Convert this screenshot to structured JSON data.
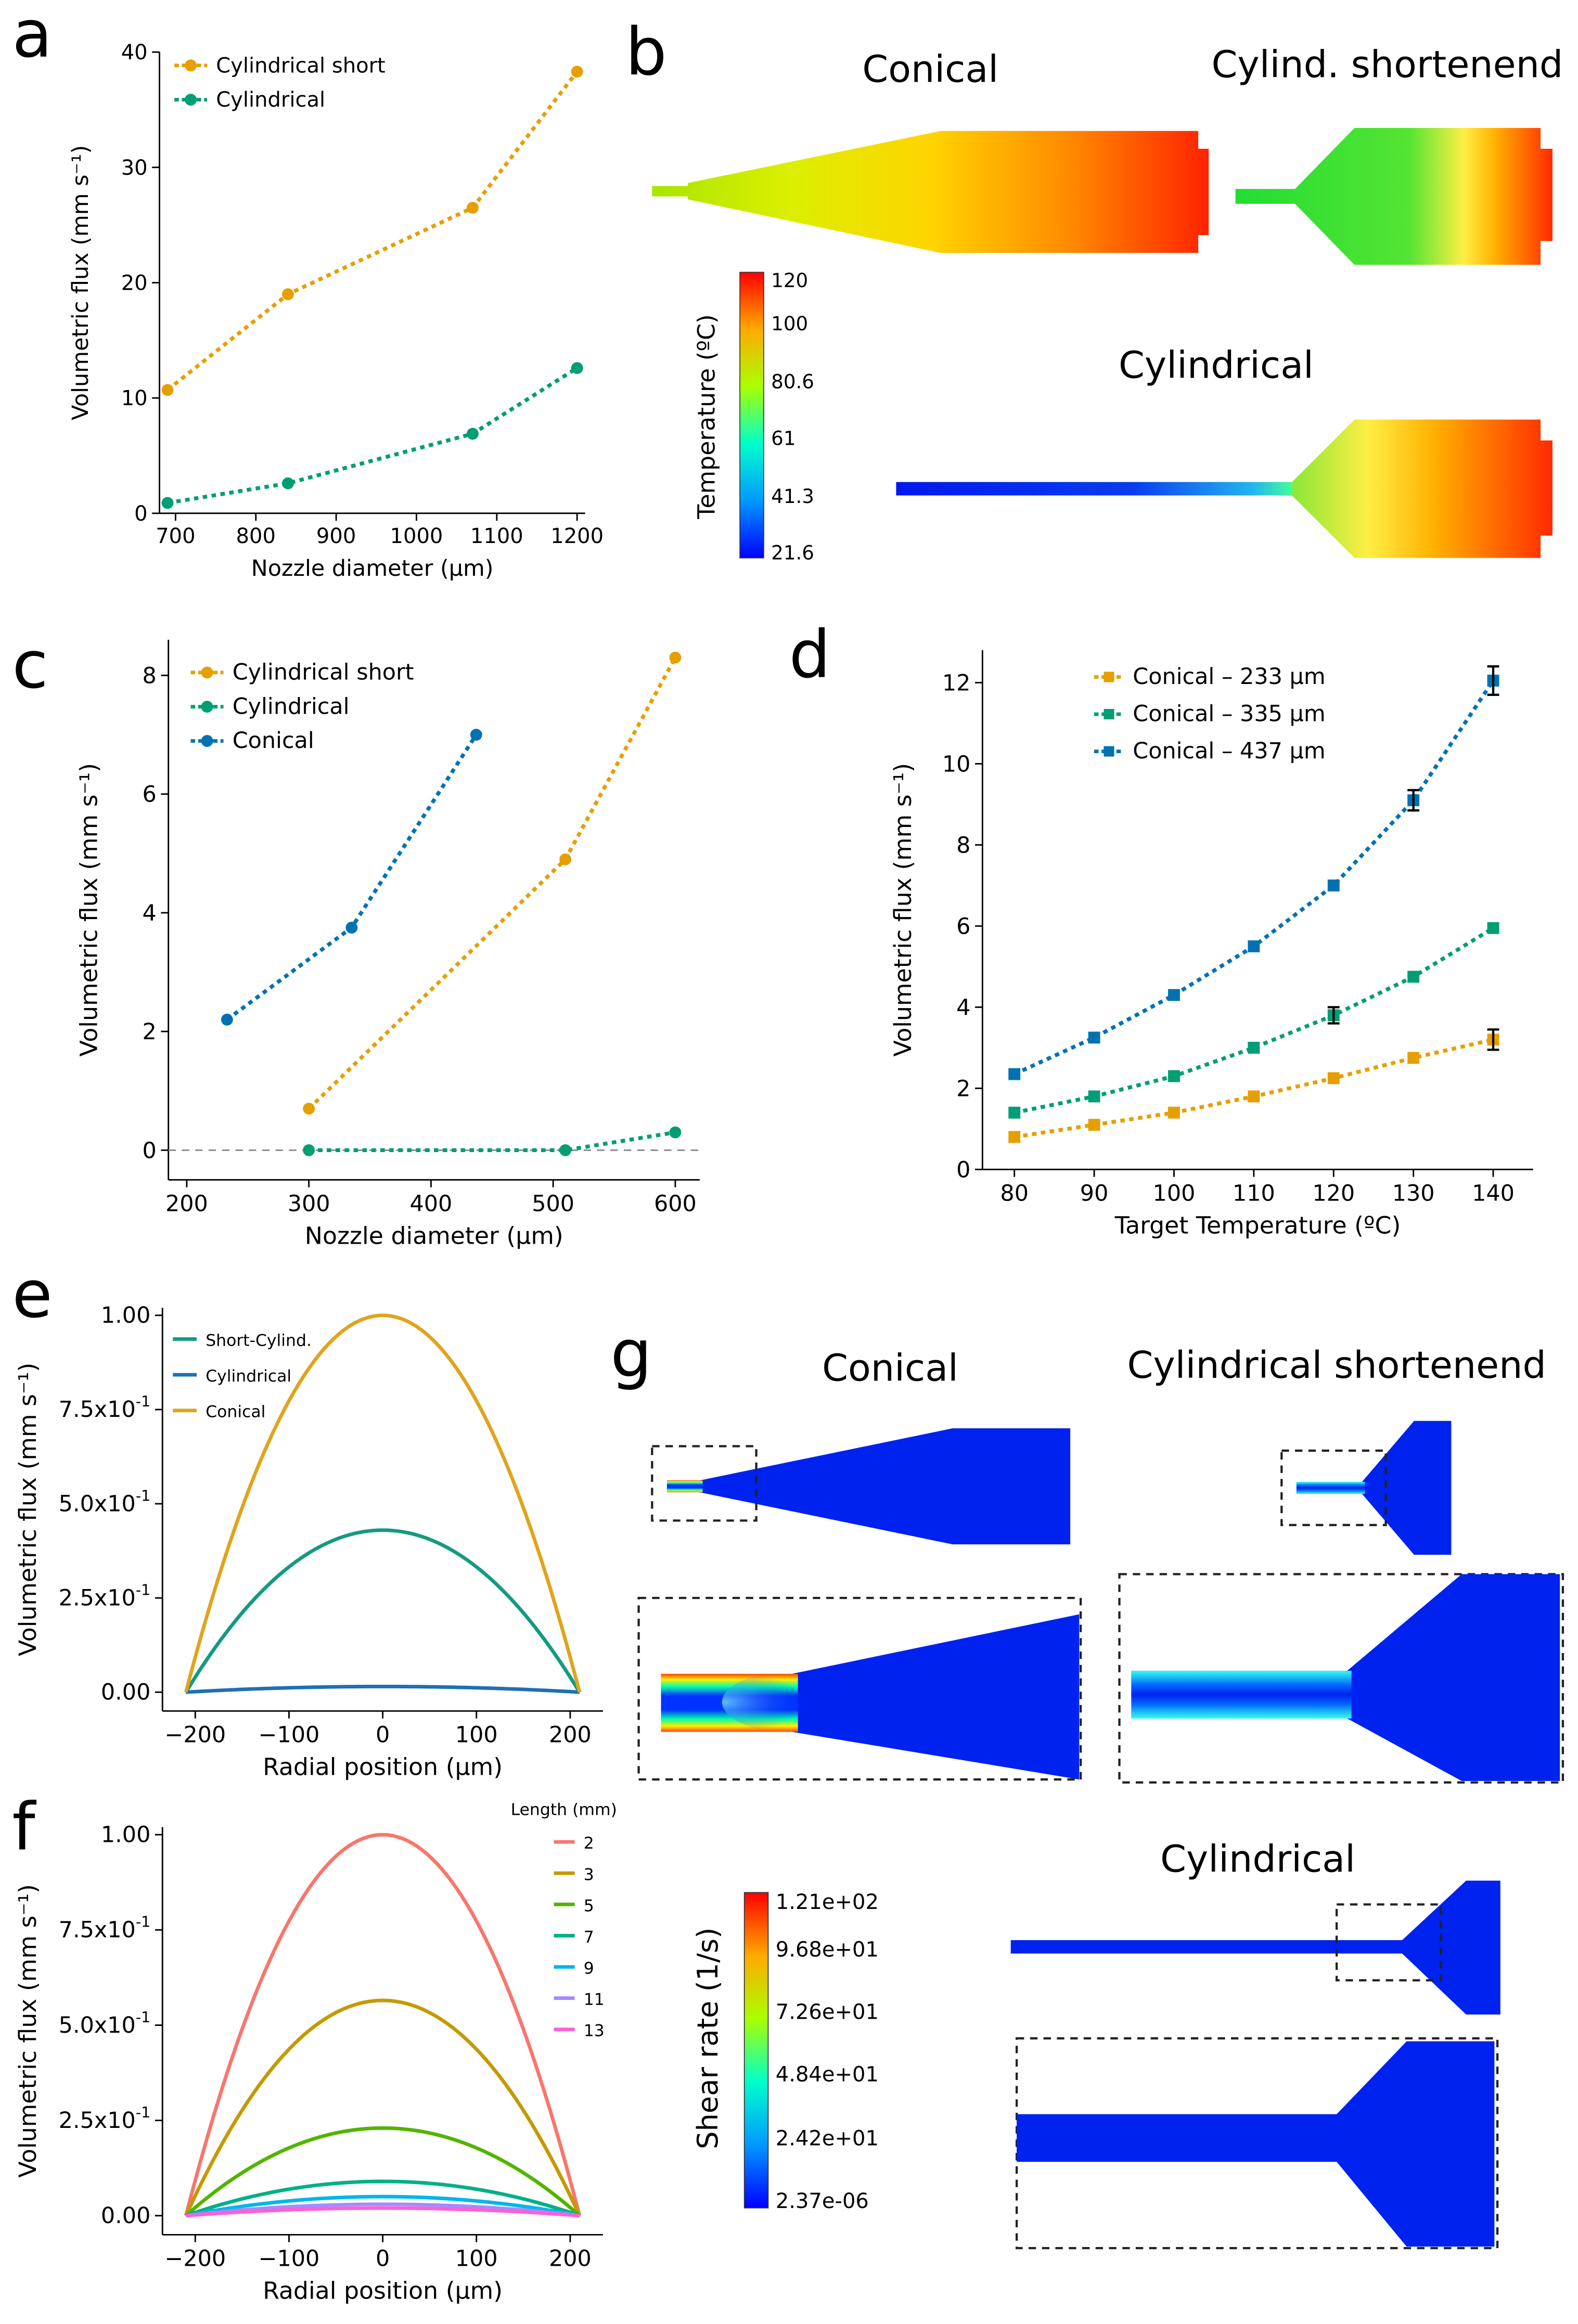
{
  "figure": {
    "panels": {
      "a": {
        "letter": "a",
        "chart_type": "line",
        "xlabel": "Nozzle diameter (μm)",
        "ylabel": "Volumetric flux  (mm s⁻¹)",
        "xlim": [
          680,
          1210
        ],
        "ylim": [
          0,
          40
        ],
        "xticks": [
          700,
          800,
          900,
          1000,
          1100,
          1200
        ],
        "yticks": [
          0,
          10,
          20,
          30,
          40
        ],
        "series": [
          {
            "name": "Cylindrical short",
            "color": "#E69F00",
            "x": [
              690,
              840,
              1070,
              1200
            ],
            "y": [
              10.7,
              19.0,
              26.5,
              38.3
            ]
          },
          {
            "name": "Cylindrical",
            "color": "#009E73",
            "x": [
              690,
              840,
              1070,
              1200
            ],
            "y": [
              0.9,
              2.6,
              6.9,
              12.6
            ]
          }
        ]
      },
      "b": {
        "letter": "b",
        "titles": {
          "conical": "Conical",
          "cyl_short": "Cylind. shortenend",
          "cyl": "Cylindrical"
        },
        "colorbar": {
          "label": "Temperature (ºC)",
          "ticks": [
            "120",
            "100",
            "80.6",
            "61",
            "41.3",
            "21.6"
          ]
        }
      },
      "c": {
        "letter": "c",
        "chart_type": "line",
        "xlabel": "Nozzle diameter (μm)",
        "ylabel": "Volumetric flux  (mm s⁻¹)",
        "xlim": [
          185,
          620
        ],
        "ylim": [
          -0.5,
          8.6
        ],
        "xticks": [
          200,
          300,
          400,
          500,
          600
        ],
        "yticks": [
          0,
          2,
          4,
          6,
          8
        ],
        "series": [
          {
            "name": "Cylindrical short",
            "color": "#E69F00",
            "x": [
              300,
              510,
              600
            ],
            "y": [
              0.7,
              4.9,
              8.3
            ]
          },
          {
            "name": "Cylindrical",
            "color": "#009E73",
            "x": [
              300,
              510,
              600
            ],
            "y": [
              0.0,
              0.0,
              0.3
            ]
          },
          {
            "name": "Conical",
            "color": "#0072B2",
            "x": [
              233,
              335,
              437
            ],
            "y": [
              2.2,
              3.75,
              7.0
            ]
          }
        ]
      },
      "d": {
        "letter": "d",
        "chart_type": "line",
        "xlabel": "Target Temperature (ºC)",
        "ylabel": "Volumetric flux  (mm s⁻¹)",
        "xlim": [
          76,
          145
        ],
        "ylim": [
          0,
          12.8
        ],
        "xticks": [
          80,
          90,
          100,
          110,
          120,
          130,
          140
        ],
        "yticks": [
          0,
          2,
          4,
          6,
          8,
          10,
          12
        ],
        "series": [
          {
            "name": "Conical – 233 μm",
            "color": "#E69F00",
            "x": [
              80,
              90,
              100,
              110,
              120,
              130,
              140
            ],
            "y": [
              0.8,
              1.1,
              1.4,
              1.8,
              2.25,
              2.75,
              3.2
            ]
          },
          {
            "name": "Conical – 335 μm",
            "color": "#009E73",
            "x": [
              80,
              90,
              100,
              110,
              120,
              130,
              140
            ],
            "y": [
              1.4,
              1.8,
              2.3,
              3.0,
              3.8,
              4.75,
              5.95
            ]
          },
          {
            "name": "Conical – 437 μm",
            "color": "#0072B2",
            "x": [
              80,
              90,
              100,
              110,
              120,
              130,
              140
            ],
            "y": [
              2.35,
              3.25,
              4.3,
              5.5,
              7.0,
              9.1,
              12.05
            ]
          }
        ],
        "error_bars": [
          {
            "series": 0,
            "x": 140,
            "err": 0.25
          },
          {
            "series": 1,
            "x": 120,
            "err": 0.2
          },
          {
            "series": 2,
            "x": 130,
            "err": 0.25
          },
          {
            "series": 2,
            "x": 140,
            "err": 0.35
          }
        ]
      },
      "e": {
        "letter": "e",
        "chart_type": "line",
        "xlabel": "Radial position (μm)",
        "ylabel": "Volumetric flux  (mm s⁻¹)",
        "xlim": [
          -235,
          235
        ],
        "ylim": [
          -0.05,
          1.02
        ],
        "xticks": [
          -200,
          -100,
          0,
          100,
          200
        ],
        "xtick_labels": [
          "−200",
          "−100",
          "0",
          "100",
          "200"
        ],
        "ytick_values": [
          0,
          0.25,
          0.5,
          0.75,
          1.0
        ],
        "ytick_labels": [
          {
            "base": "0.00"
          },
          {
            "base": "2.5x10",
            "exp": "-1"
          },
          {
            "base": "5.0x10",
            "exp": "-1"
          },
          {
            "base": "7.5x10",
            "exp": "-1"
          },
          {
            "base": "1.00"
          }
        ],
        "profile": {
          "x_range": [
            -210,
            210
          ],
          "shape": "parabolic"
        },
        "series": [
          {
            "name": "Short-Cylind.",
            "color": "#149A80",
            "peak": 0.43
          },
          {
            "name": "Cylindrical",
            "color": "#1F6FB4",
            "peak": 0.015
          },
          {
            "name": "Conical",
            "color": "#E0A41C",
            "peak": 1.0
          }
        ]
      },
      "f": {
        "letter": "f",
        "chart_type": "line",
        "xlabel": "Radial position (μm)",
        "ylabel": "Volumetric flux  (mm s⁻¹)",
        "legend_title": "Length (mm)",
        "xlim": [
          -235,
          235
        ],
        "ylim": [
          -0.05,
          1.02
        ],
        "xticks": [
          -200,
          -100,
          0,
          100,
          200
        ],
        "xtick_labels": [
          "−200",
          "−100",
          "0",
          "100",
          "200"
        ],
        "ytick_values": [
          0,
          0.25,
          0.5,
          0.75,
          1.0
        ],
        "ytick_labels": [
          {
            "base": "0.00"
          },
          {
            "base": "2.5x10",
            "exp": "-1"
          },
          {
            "base": "5.0x10",
            "exp": "-1"
          },
          {
            "base": "7.5x10",
            "exp": "-1"
          },
          {
            "base": "1.00"
          }
        ],
        "profile": {
          "x_range": [
            -210,
            210
          ],
          "shape": "parabolic"
        },
        "series": [
          {
            "name": "2",
            "color": "#F8766D",
            "peak": 1.0
          },
          {
            "name": "3",
            "color": "#C49A00",
            "peak": 0.565
          },
          {
            "name": "5",
            "color": "#53B400",
            "peak": 0.23
          },
          {
            "name": "7",
            "color": "#00B087",
            "peak": 0.09
          },
          {
            "name": "9",
            "color": "#00B6EB",
            "peak": 0.05
          },
          {
            "name": "11",
            "color": "#A58AFF",
            "peak": 0.03
          },
          {
            "name": "13",
            "color": "#FB61D7",
            "peak": 0.02
          }
        ]
      },
      "g": {
        "letter": "g",
        "titles": {
          "conical": "Conical",
          "cyl_short": "Cylindrical shortenend",
          "cyl": "Cylindrical"
        },
        "colorbar": {
          "label": "Shear rate (1/s)",
          "ticks": [
            "1.21e+02",
            "9.68e+01",
            "7.26e+01",
            "4.84e+01",
            "2.42e+01",
            "2.37e-06"
          ]
        }
      }
    }
  },
  "chart_data": [
    {
      "panel": "a",
      "type": "line",
      "xlabel": "Nozzle diameter (μm)",
      "ylabel": "Volumetric flux (mm s⁻¹)",
      "series": [
        {
          "name": "Cylindrical short",
          "x": [
            690,
            840,
            1070,
            1200
          ],
          "y": [
            10.7,
            19.0,
            26.5,
            38.3
          ]
        },
        {
          "name": "Cylindrical",
          "x": [
            690,
            840,
            1070,
            1200
          ],
          "y": [
            0.9,
            2.6,
            6.9,
            12.6
          ]
        }
      ]
    },
    {
      "panel": "c",
      "type": "line",
      "xlabel": "Nozzle diameter (μm)",
      "ylabel": "Volumetric flux (mm s⁻¹)",
      "series": [
        {
          "name": "Cylindrical short",
          "x": [
            300,
            510,
            600
          ],
          "y": [
            0.7,
            4.9,
            8.3
          ]
        },
        {
          "name": "Cylindrical",
          "x": [
            300,
            510,
            600
          ],
          "y": [
            0.0,
            0.0,
            0.3
          ]
        },
        {
          "name": "Conical",
          "x": [
            233,
            335,
            437
          ],
          "y": [
            2.2,
            3.75,
            7.0
          ]
        }
      ]
    },
    {
      "panel": "d",
      "type": "line",
      "xlabel": "Target Temperature (ºC)",
      "ylabel": "Volumetric flux (mm s⁻¹)",
      "categories": [
        80,
        90,
        100,
        110,
        120,
        130,
        140
      ],
      "series": [
        {
          "name": "Conical – 233 μm",
          "values": [
            0.8,
            1.1,
            1.4,
            1.8,
            2.25,
            2.75,
            3.2
          ]
        },
        {
          "name": "Conical – 335 μm",
          "values": [
            1.4,
            1.8,
            2.3,
            3.0,
            3.8,
            4.75,
            5.95
          ]
        },
        {
          "name": "Conical – 437 μm",
          "values": [
            2.35,
            3.25,
            4.3,
            5.5,
            7.0,
            9.1,
            12.05
          ]
        }
      ]
    },
    {
      "panel": "e",
      "type": "line",
      "xlabel": "Radial position (μm)",
      "ylabel": "Volumetric flux (mm s⁻¹)",
      "series": [
        {
          "name": "Short-Cylind.",
          "peak": 0.43
        },
        {
          "name": "Cylindrical",
          "peak": 0.015
        },
        {
          "name": "Conical",
          "peak": 1.0
        }
      ]
    },
    {
      "panel": "f",
      "type": "line",
      "xlabel": "Radial position (μm)",
      "ylabel": "Volumetric flux (mm s⁻¹)",
      "legend_title": "Length (mm)",
      "series": [
        {
          "name": "2",
          "peak": 1.0
        },
        {
          "name": "3",
          "peak": 0.565
        },
        {
          "name": "5",
          "peak": 0.23
        },
        {
          "name": "7",
          "peak": 0.09
        },
        {
          "name": "9",
          "peak": 0.05
        },
        {
          "name": "11",
          "peak": 0.03
        },
        {
          "name": "13",
          "peak": 0.02
        }
      ]
    }
  ]
}
